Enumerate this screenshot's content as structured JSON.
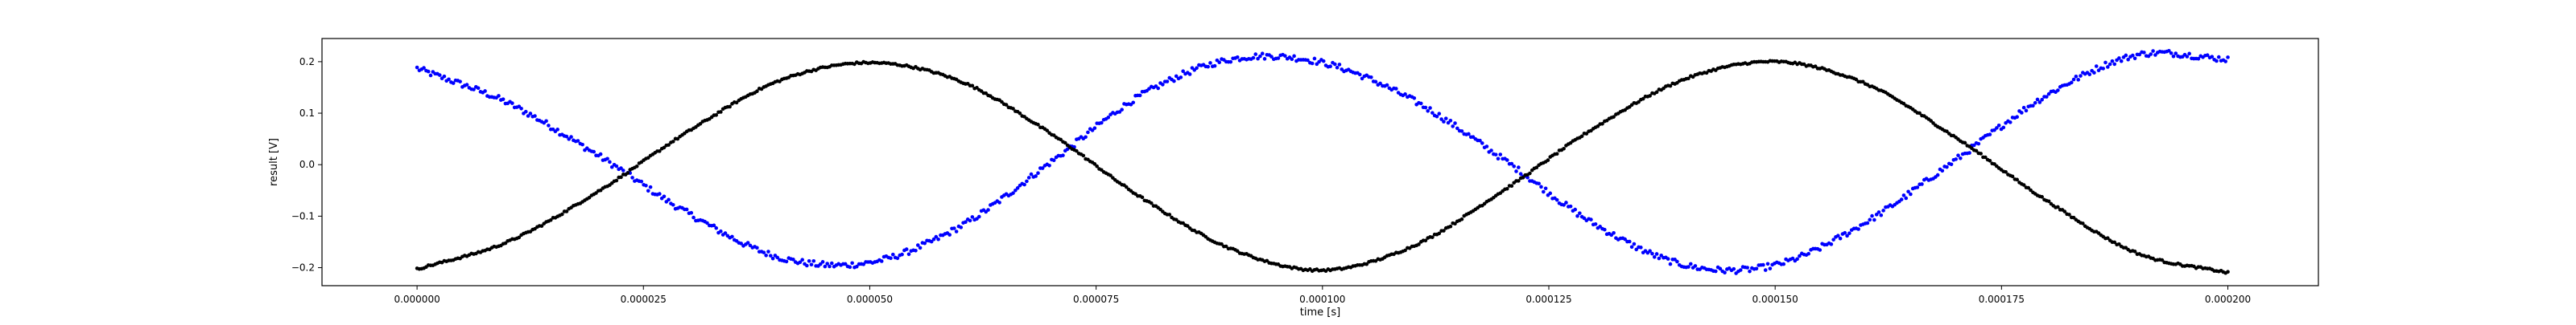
{
  "chart_data": {
    "type": "scatter",
    "title": "",
    "xlabel": "time [s]",
    "ylabel": "result [V]",
    "xlim": [
      -1.05e-05,
      0.00021
    ],
    "ylim": [
      -0.235,
      0.245
    ],
    "x_ticks": [
      {
        "value": 0.0,
        "label": "0.000000"
      },
      {
        "value": 2.5e-05,
        "label": "0.000025"
      },
      {
        "value": 5e-05,
        "label": "0.000050"
      },
      {
        "value": 7.5e-05,
        "label": "0.000075"
      },
      {
        "value": 0.0001,
        "label": "0.000100"
      },
      {
        "value": 0.000125,
        "label": "0.000125"
      },
      {
        "value": 0.00015,
        "label": "0.000150"
      },
      {
        "value": 0.000175,
        "label": "0.000175"
      },
      {
        "value": 0.0002,
        "label": "0.000200"
      }
    ],
    "y_ticks": [
      {
        "value": -0.2,
        "label": "−0.2"
      },
      {
        "value": -0.1,
        "label": "−0.1"
      },
      {
        "value": 0.0,
        "label": "0.0"
      },
      {
        "value": 0.1,
        "label": "0.1"
      },
      {
        "value": 0.2,
        "label": "0.2"
      }
    ],
    "grid": false,
    "series": [
      {
        "name": "blue",
        "color": "#0000ff",
        "x": [
          0,
          1e-05,
          2e-05,
          3e-05,
          4e-05,
          5e-05,
          6e-05,
          7e-05,
          8e-05,
          9e-05,
          0.0001,
          0.00011,
          0.00012,
          0.00013,
          0.00014,
          0.00015,
          0.00016,
          0.00017,
          0.00018,
          0.00019,
          0.0002
        ],
        "y": [
          0.187,
          0.12,
          0.018,
          -0.095,
          -0.18,
          -0.19,
          -0.12,
          0.005,
          0.135,
          0.205,
          0.198,
          0.125,
          0.01,
          -0.115,
          -0.195,
          -0.195,
          -0.112,
          0.01,
          0.135,
          0.213,
          0.205
        ]
      },
      {
        "name": "black",
        "color": "#000000",
        "x": [
          0,
          1e-05,
          2e-05,
          3e-05,
          4e-05,
          5e-05,
          6e-05,
          7e-05,
          8e-05,
          9e-05,
          0.0001,
          0.00011,
          0.00012,
          0.00013,
          0.00014,
          0.00015,
          0.00016,
          0.00017,
          0.00018,
          0.00019,
          0.0002
        ],
        "y": [
          -0.203,
          -0.15,
          -0.052,
          0.065,
          0.163,
          0.198,
          0.162,
          0.06,
          -0.064,
          -0.164,
          -0.205,
          -0.158,
          -0.05,
          0.071,
          0.166,
          0.2,
          0.157,
          0.052,
          -0.07,
          -0.172,
          -0.21
        ]
      }
    ],
    "sample_count_per_series": 800
  }
}
